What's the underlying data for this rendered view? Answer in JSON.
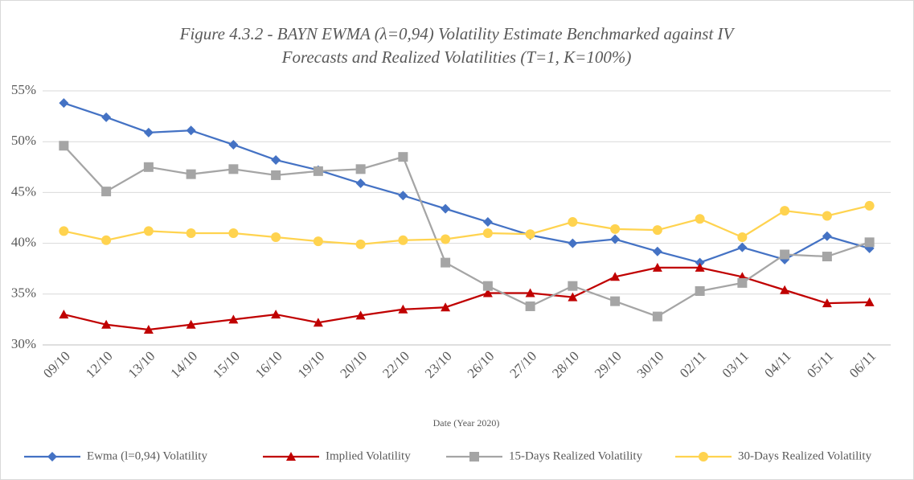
{
  "chart_data": {
    "type": "line",
    "title": [
      "Figure 4.3.2 - BAYN EWMA (λ=0,94) Volatility Estimate Benchmarked against IV",
      "Forecasts and Realized Volatilities (T=1, K=100%)"
    ],
    "x_label": "Date (Year 2020)",
    "categories": [
      "09/10",
      "12/10",
      "13/10",
      "14/10",
      "15/10",
      "16/10",
      "19/10",
      "20/10",
      "22/10",
      "23/10",
      "26/10",
      "27/10",
      "28/10",
      "29/10",
      "30/10",
      "02/11",
      "03/11",
      "04/11",
      "05/11",
      "06/11"
    ],
    "series": [
      {
        "name": "Ewma (l=0,94) Volatility",
        "color": "#4472c4",
        "marker": "diamond",
        "values": [
          53.8,
          52.4,
          50.9,
          51.1,
          49.7,
          48.2,
          47.2,
          45.9,
          44.7,
          43.4,
          42.1,
          40.8,
          40.0,
          40.4,
          39.2,
          38.1,
          39.6,
          38.4,
          40.7,
          39.5
        ]
      },
      {
        "name": "Implied Volatility",
        "color": "#c00000",
        "marker": "triangle",
        "values": [
          33.0,
          32.0,
          31.5,
          32.0,
          32.5,
          33.0,
          32.2,
          32.9,
          33.5,
          33.7,
          35.1,
          35.1,
          34.7,
          36.7,
          37.6,
          37.6,
          36.7,
          35.4,
          34.1,
          34.2
        ]
      },
      {
        "name": "15-Days Realized Volatility",
        "color": "#a5a5a5",
        "marker": "square",
        "values": [
          49.6,
          45.1,
          47.5,
          46.8,
          47.3,
          46.7,
          47.1,
          47.3,
          48.5,
          38.1,
          35.8,
          33.8,
          35.8,
          34.3,
          32.8,
          35.3,
          36.1,
          38.9,
          38.7,
          40.1
        ]
      },
      {
        "name": "30-Days Realized Volatility",
        "color": "#ffd34f",
        "marker": "circle",
        "values": [
          41.2,
          40.3,
          41.2,
          41.0,
          41.0,
          40.6,
          40.2,
          39.9,
          40.3,
          40.4,
          41.0,
          40.9,
          42.1,
          41.4,
          41.3,
          42.4,
          40.6,
          43.2,
          42.7,
          43.7
        ]
      }
    ],
    "ylim": [
      30,
      55
    ],
    "yticks": [
      {
        "value": 30,
        "label": "30%"
      },
      {
        "value": 35,
        "label": "35%"
      },
      {
        "value": 40,
        "label": "40%"
      },
      {
        "value": 45,
        "label": "45%"
      },
      {
        "value": 50,
        "label": "50%"
      },
      {
        "value": 55,
        "label": "55%"
      }
    ],
    "grid": true,
    "legend": "bottom"
  }
}
